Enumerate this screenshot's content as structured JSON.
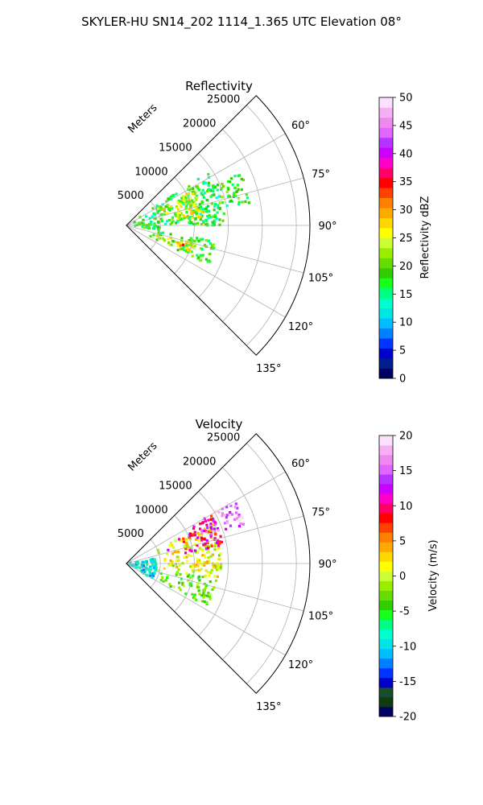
{
  "figure_title": "SKYLER-HU  SN14_202  1114_1.365 UTC Elevation 08°",
  "chart_data": [
    {
      "type": "heatmap",
      "subtype": "polar-ppi-sector",
      "title": "Reflectivity",
      "range_label": "Meters",
      "range_ticks": [
        5000,
        10000,
        15000,
        20000,
        25000
      ],
      "range_tick_labels": [
        "5000",
        "10000",
        "15000",
        "20000",
        "25000"
      ],
      "range_max": 27000,
      "azimuth_range_deg": [
        45,
        135
      ],
      "azimuth_ticks_deg": [
        60,
        75,
        90,
        105,
        120,
        135
      ],
      "azimuth_tick_labels": [
        "60°",
        "75°",
        "90°",
        "105°",
        "120°",
        "135°"
      ],
      "grid": true,
      "colorbar": {
        "label": "Reflectivity dBZ",
        "vmin": 0,
        "vmax": 50,
        "ticks": [
          0,
          5,
          10,
          15,
          20,
          25,
          30,
          35,
          40,
          45,
          50
        ],
        "tick_labels": [
          "0",
          "5",
          "10",
          "15",
          "20",
          "25",
          "30",
          "35",
          "40",
          "45",
          "50"
        ],
        "colors": [
          "#000066",
          "#001f8f",
          "#0000cc",
          "#0033ff",
          "#0080ff",
          "#00bfff",
          "#00e6e6",
          "#00ffcc",
          "#00ff80",
          "#1aff1a",
          "#33cc00",
          "#66dd00",
          "#99ee00",
          "#ccff33",
          "#ffff00",
          "#ffd700",
          "#ffaa00",
          "#ff8000",
          "#ff4000",
          "#ff0000",
          "#ff0066",
          "#ff00cc",
          "#cc00ff",
          "#b733ff",
          "#e066ff",
          "#ee88ee",
          "#f5b0f5",
          "#fce0fc"
        ],
        "low_band_colors": [
          "#0a0a40",
          "#103b10",
          "#1a4d2e"
        ]
      },
      "regions": [
        {
          "az_deg": [
            57,
            90
          ],
          "range_m": [
            0,
            14500
          ],
          "value_dBZ": 17
        },
        {
          "az_deg": [
            62,
            85
          ],
          "range_m": [
            5000,
            11500
          ],
          "value_dBZ": 25
        },
        {
          "az_deg": [
            65,
            80
          ],
          "range_m": [
            10500,
            18500
          ],
          "value_dBZ": 18
        },
        {
          "az_deg": [
            88,
            98
          ],
          "range_m": [
            0,
            5000
          ],
          "value_dBZ": 18
        },
        {
          "az_deg": [
            100,
            116
          ],
          "range_m": [
            3000,
            13500
          ],
          "value_dBZ": 19
        },
        {
          "az_deg": [
            104,
            114
          ],
          "range_m": [
            4500,
            10500
          ],
          "value_dBZ": 26
        },
        {
          "az_deg": [
            108,
            111
          ],
          "range_m": [
            7500,
            9000
          ],
          "value_dBZ": 33
        }
      ]
    },
    {
      "type": "heatmap",
      "subtype": "polar-ppi-sector",
      "title": "Velocity",
      "range_label": "Meters",
      "range_ticks": [
        5000,
        10000,
        15000,
        20000,
        25000
      ],
      "range_tick_labels": [
        "5000",
        "10000",
        "15000",
        "20000",
        "25000"
      ],
      "range_max": 27000,
      "azimuth_range_deg": [
        45,
        135
      ],
      "azimuth_ticks_deg": [
        60,
        75,
        90,
        105,
        120,
        135
      ],
      "azimuth_tick_labels": [
        "60°",
        "75°",
        "90°",
        "105°",
        "120°",
        "135°"
      ],
      "grid": true,
      "colorbar": {
        "label": "Velocity (m/s)",
        "vmin": -20,
        "vmax": 20,
        "ticks": [
          -20,
          -15,
          -10,
          -5,
          0,
          5,
          10,
          15,
          20
        ],
        "tick_labels": [
          "-20",
          "-15",
          "-10",
          "-5",
          "0",
          "5",
          "10",
          "15",
          "20"
        ],
        "colors": [
          "#000066",
          "#103b10",
          "#1a4d2e",
          "#0000cc",
          "#0033ff",
          "#0080ff",
          "#00bfff",
          "#00e6e6",
          "#00ffcc",
          "#00ff80",
          "#1aff1a",
          "#33cc00",
          "#66dd00",
          "#99ee00",
          "#ccff33",
          "#ffff00",
          "#ffd700",
          "#ffaa00",
          "#ff8000",
          "#ff4000",
          "#ff0000",
          "#ff0066",
          "#ff00cc",
          "#cc00ff",
          "#b733ff",
          "#e066ff",
          "#ee88ee",
          "#f5b0f5",
          "#fce0fc"
        ],
        "low_band_colors": []
      },
      "regions": [
        {
          "az_deg": [
            80,
            120
          ],
          "range_m": [
            0,
            4500
          ],
          "value_ms": -9
        },
        {
          "az_deg": [
            100,
            118
          ],
          "range_m": [
            4500,
            13500
          ],
          "value_ms": -3
        },
        {
          "az_deg": [
            65,
            100
          ],
          "range_m": [
            4500,
            14000
          ],
          "value_ms": 1
        },
        {
          "az_deg": [
            60,
            80
          ],
          "range_m": [
            6000,
            14500
          ],
          "value_ms": 10
        },
        {
          "az_deg": [
            59,
            72
          ],
          "range_m": [
            11000,
            18500
          ],
          "value_ms": 16
        }
      ]
    }
  ]
}
